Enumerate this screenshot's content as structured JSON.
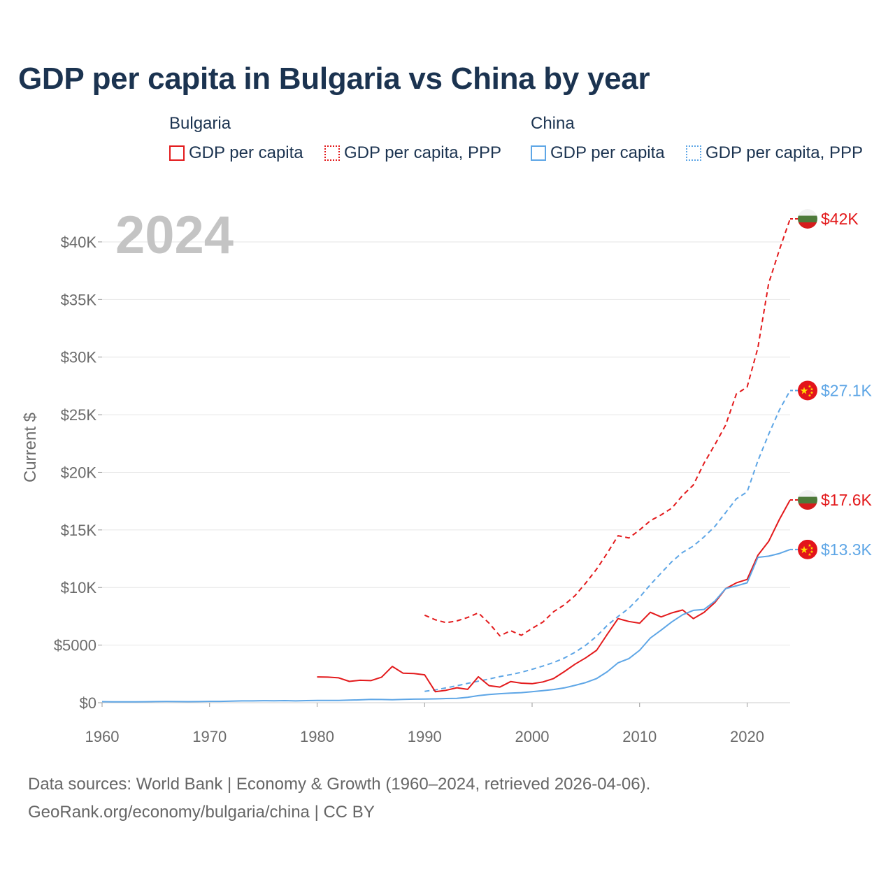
{
  "title": "GDP per capita in Bulgaria vs China by year",
  "legend": {
    "groups": [
      {
        "name": "Bulgaria",
        "items": [
          {
            "label": "GDP per capita",
            "color": "#e31a1c",
            "style": "solid"
          },
          {
            "label": "GDP per capita, PPP",
            "color": "#e31a1c",
            "style": "dotted"
          }
        ]
      },
      {
        "name": "China",
        "items": [
          {
            "label": "GDP per capita",
            "color": "#5ea6e6",
            "style": "solid"
          },
          {
            "label": "GDP per capita, PPP",
            "color": "#5ea6e6",
            "style": "dotted"
          }
        ]
      }
    ]
  },
  "footer": {
    "line1": "Data sources: World Bank | Economy & Growth (1960–2024, retrieved 2026-04-06).",
    "line2": "GeoRank.org/economy/bulgaria/china | CC BY"
  },
  "chart_data": {
    "type": "line",
    "title": "GDP per capita in Bulgaria vs China by year",
    "year_label": "2024",
    "ylabel": "Current $",
    "xlabel": "",
    "xlim": [
      1960,
      2024
    ],
    "ylim": [
      0,
      42000
    ],
    "x_ticks": [
      1960,
      1970,
      1980,
      1990,
      2000,
      2010,
      2020
    ],
    "y_ticks": [
      {
        "value": 0,
        "label": "$0"
      },
      {
        "value": 5000,
        "label": "$5000"
      },
      {
        "value": 10000,
        "label": "$10K"
      },
      {
        "value": 15000,
        "label": "$15K"
      },
      {
        "value": 20000,
        "label": "$20K"
      },
      {
        "value": 25000,
        "label": "$25K"
      },
      {
        "value": 30000,
        "label": "$30K"
      },
      {
        "value": 35000,
        "label": "$35K"
      },
      {
        "value": 40000,
        "label": "$40K"
      }
    ],
    "grid": true,
    "series": [
      {
        "name": "Bulgaria GDP per capita, PPP",
        "country": "Bulgaria",
        "flag": "bulgaria",
        "color": "#e31a1c",
        "dashed": true,
        "end_label": "$42K",
        "x": [
          1990,
          1991,
          1992,
          1993,
          1994,
          1995,
          1996,
          1997,
          1998,
          1999,
          2000,
          2001,
          2002,
          2003,
          2004,
          2005,
          2006,
          2007,
          2008,
          2009,
          2010,
          2011,
          2012,
          2013,
          2014,
          2015,
          2016,
          2017,
          2018,
          2019,
          2020,
          2021,
          2022,
          2023,
          2024
        ],
        "y": [
          7600,
          7200,
          6950,
          7100,
          7400,
          7800,
          6900,
          5800,
          6250,
          5850,
          6450,
          7000,
          7900,
          8500,
          9300,
          10400,
          11600,
          13000,
          14500,
          14300,
          15000,
          15800,
          16300,
          16900,
          18000,
          18900,
          20800,
          22400,
          24100,
          26800,
          27400,
          30800,
          36400,
          39300,
          42000
        ]
      },
      {
        "name": "China GDP per capita, PPP",
        "country": "China",
        "flag": "china",
        "color": "#5ea6e6",
        "dashed": true,
        "end_label": "$27.1K",
        "x": [
          1990,
          1991,
          1992,
          1993,
          1994,
          1995,
          1996,
          1997,
          1998,
          1999,
          2000,
          2001,
          2002,
          2003,
          2004,
          2005,
          2006,
          2007,
          2008,
          2009,
          2010,
          2011,
          2012,
          2013,
          2014,
          2015,
          2016,
          2017,
          2018,
          2019,
          2020,
          2021,
          2022,
          2023,
          2024
        ],
        "y": [
          990,
          1110,
          1290,
          1470,
          1680,
          1870,
          2060,
          2270,
          2440,
          2640,
          2900,
          3180,
          3490,
          3880,
          4380,
          5000,
          5770,
          6720,
          7490,
          8200,
          9150,
          10250,
          11250,
          12250,
          13050,
          13600,
          14400,
          15300,
          16500,
          17700,
          18300,
          21000,
          23300,
          25400,
          27100
        ]
      },
      {
        "name": "Bulgaria GDP per capita",
        "country": "Bulgaria",
        "flag": "bulgaria",
        "color": "#e31a1c",
        "dashed": false,
        "end_label": "$17.6K",
        "x": [
          1980,
          1981,
          1982,
          1983,
          1984,
          1985,
          1986,
          1987,
          1988,
          1989,
          1990,
          1991,
          1992,
          1993,
          1994,
          1995,
          1996,
          1997,
          1998,
          1999,
          2000,
          2001,
          2002,
          2003,
          2004,
          2005,
          2006,
          2007,
          2008,
          2009,
          2010,
          2011,
          2012,
          2013,
          2014,
          2015,
          2016,
          2017,
          2018,
          2019,
          2020,
          2021,
          2022,
          2023,
          2024
        ],
        "y": [
          2240,
          2220,
          2160,
          1850,
          1950,
          1920,
          2220,
          3150,
          2560,
          2530,
          2420,
          960,
          1080,
          1300,
          1160,
          2250,
          1480,
          1360,
          1830,
          1700,
          1650,
          1800,
          2100,
          2700,
          3350,
          3900,
          4550,
          5950,
          7300,
          7050,
          6900,
          7850,
          7450,
          7800,
          8050,
          7300,
          7850,
          8700,
          9900,
          10400,
          10700,
          12800,
          14000,
          15900,
          17600
        ]
      },
      {
        "name": "China GDP per capita",
        "country": "China",
        "flag": "china",
        "color": "#5ea6e6",
        "dashed": false,
        "end_label": "$13.3K",
        "x": [
          1960,
          1961,
          1962,
          1963,
          1964,
          1965,
          1966,
          1967,
          1968,
          1969,
          1970,
          1971,
          1972,
          1973,
          1974,
          1975,
          1976,
          1977,
          1978,
          1979,
          1980,
          1981,
          1982,
          1983,
          1984,
          1985,
          1986,
          1987,
          1988,
          1989,
          1990,
          1991,
          1992,
          1993,
          1994,
          1995,
          1996,
          1997,
          1998,
          1999,
          2000,
          2001,
          2002,
          2003,
          2004,
          2005,
          2006,
          2007,
          2008,
          2009,
          2010,
          2011,
          2012,
          2013,
          2014,
          2015,
          2016,
          2017,
          2018,
          2019,
          2020,
          2021,
          2022,
          2023,
          2024
        ],
        "y": [
          90,
          76,
          70,
          74,
          85,
          98,
          104,
          97,
          91,
          100,
          113,
          118,
          132,
          157,
          160,
          178,
          165,
          185,
          156,
          183,
          195,
          197,
          203,
          225,
          250,
          294,
          282,
          252,
          283,
          310,
          318,
          333,
          366,
          377,
          473,
          610,
          709,
          782,
          829,
          873,
          959,
          1053,
          1149,
          1289,
          1509,
          1753,
          2099,
          2693,
          3468,
          3832,
          4550,
          5614,
          6301,
          7020,
          7636,
          8016,
          8094,
          8817,
          9905,
          10144,
          10409,
          12618,
          12720,
          12951,
          13300
        ]
      }
    ]
  }
}
